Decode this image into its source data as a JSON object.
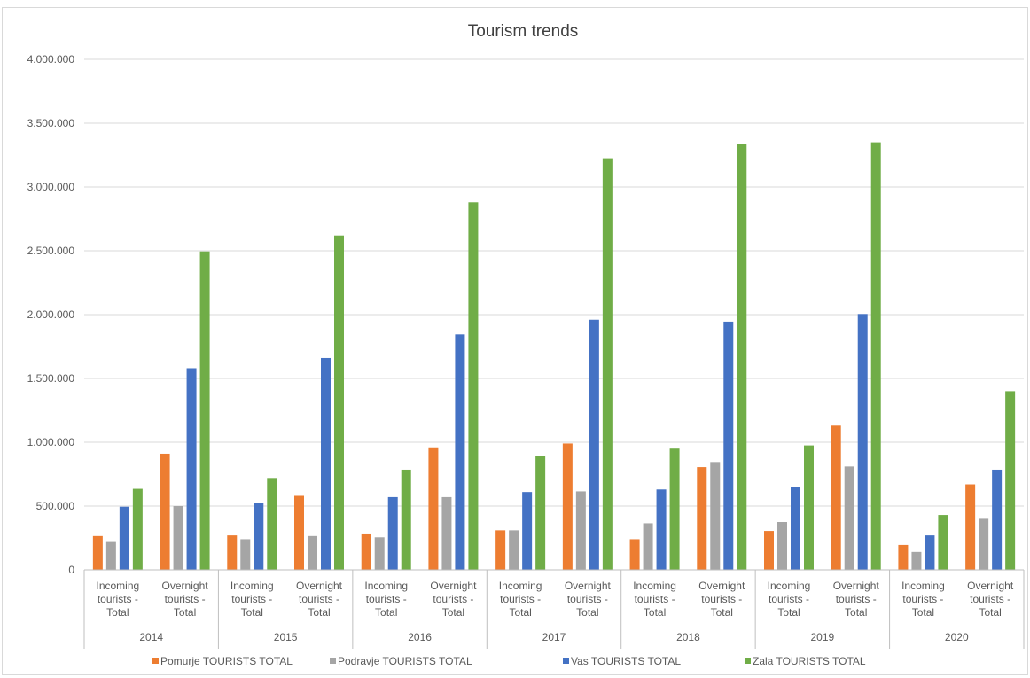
{
  "chart_data": {
    "type": "bar",
    "title": "Tourism trends",
    "xlabel": "",
    "ylabel": "",
    "ylim": [
      0,
      4000000
    ],
    "yticks": [
      "0",
      "500.000",
      "1.000.000",
      "1.500.000",
      "2.000.000",
      "2.500.000",
      "3.000.000",
      "3.500.000",
      "4.000.000"
    ],
    "grid": true,
    "legend_position": "bottom",
    "groups": [
      {
        "year": "2014",
        "categories": [
          "Incoming tourists - Total",
          "Overnight tourists - Total"
        ]
      },
      {
        "year": "2015",
        "categories": [
          "Incoming tourists - Total",
          "Overnight tourists - Total"
        ]
      },
      {
        "year": "2016",
        "categories": [
          "Incoming tourists - Total",
          "Overnight tourists - Total"
        ]
      },
      {
        "year": "2017",
        "categories": [
          "Incoming tourists - Total",
          "Overnight tourists - Total"
        ]
      },
      {
        "year": "2018",
        "categories": [
          "Incoming tourists - Total",
          "Overnight tourists - Total"
        ]
      },
      {
        "year": "2019",
        "categories": [
          "Incoming tourists - Total",
          "Overnight tourists - Total"
        ]
      },
      {
        "year": "2020",
        "categories": [
          "Incoming tourists - Total",
          "Overnight tourists - Total"
        ]
      }
    ],
    "category_label_lines": [
      [
        "Incoming",
        "tourists -",
        "Total"
      ],
      [
        "Overnight",
        "tourists -",
        "Total"
      ]
    ],
    "series": [
      {
        "name": "Pomurje TOURISTS TOTAL",
        "color": "#ed7d31",
        "values": [
          265000,
          910000,
          270000,
          580000,
          285000,
          960000,
          310000,
          990000,
          240000,
          805000,
          305000,
          1130000,
          195000,
          670000
        ]
      },
      {
        "name": "Podravje  TOURISTS TOTAL",
        "color": "#a5a5a5",
        "values": [
          225000,
          500000,
          240000,
          265000,
          255000,
          570000,
          310000,
          615000,
          365000,
          845000,
          375000,
          810000,
          140000,
          400000
        ]
      },
      {
        "name": "Vas  TOURISTS TOTAL",
        "color": "#4472c4",
        "values": [
          495000,
          1580000,
          525000,
          1660000,
          570000,
          1845000,
          610000,
          1960000,
          630000,
          1945000,
          650000,
          2005000,
          270000,
          785000
        ]
      },
      {
        "name": "Zala  TOURISTS TOTAL",
        "color": "#70ad47",
        "values": [
          635000,
          2495000,
          720000,
          2620000,
          785000,
          2880000,
          895000,
          3225000,
          950000,
          3335000,
          975000,
          3350000,
          430000,
          1400000
        ]
      }
    ]
  }
}
